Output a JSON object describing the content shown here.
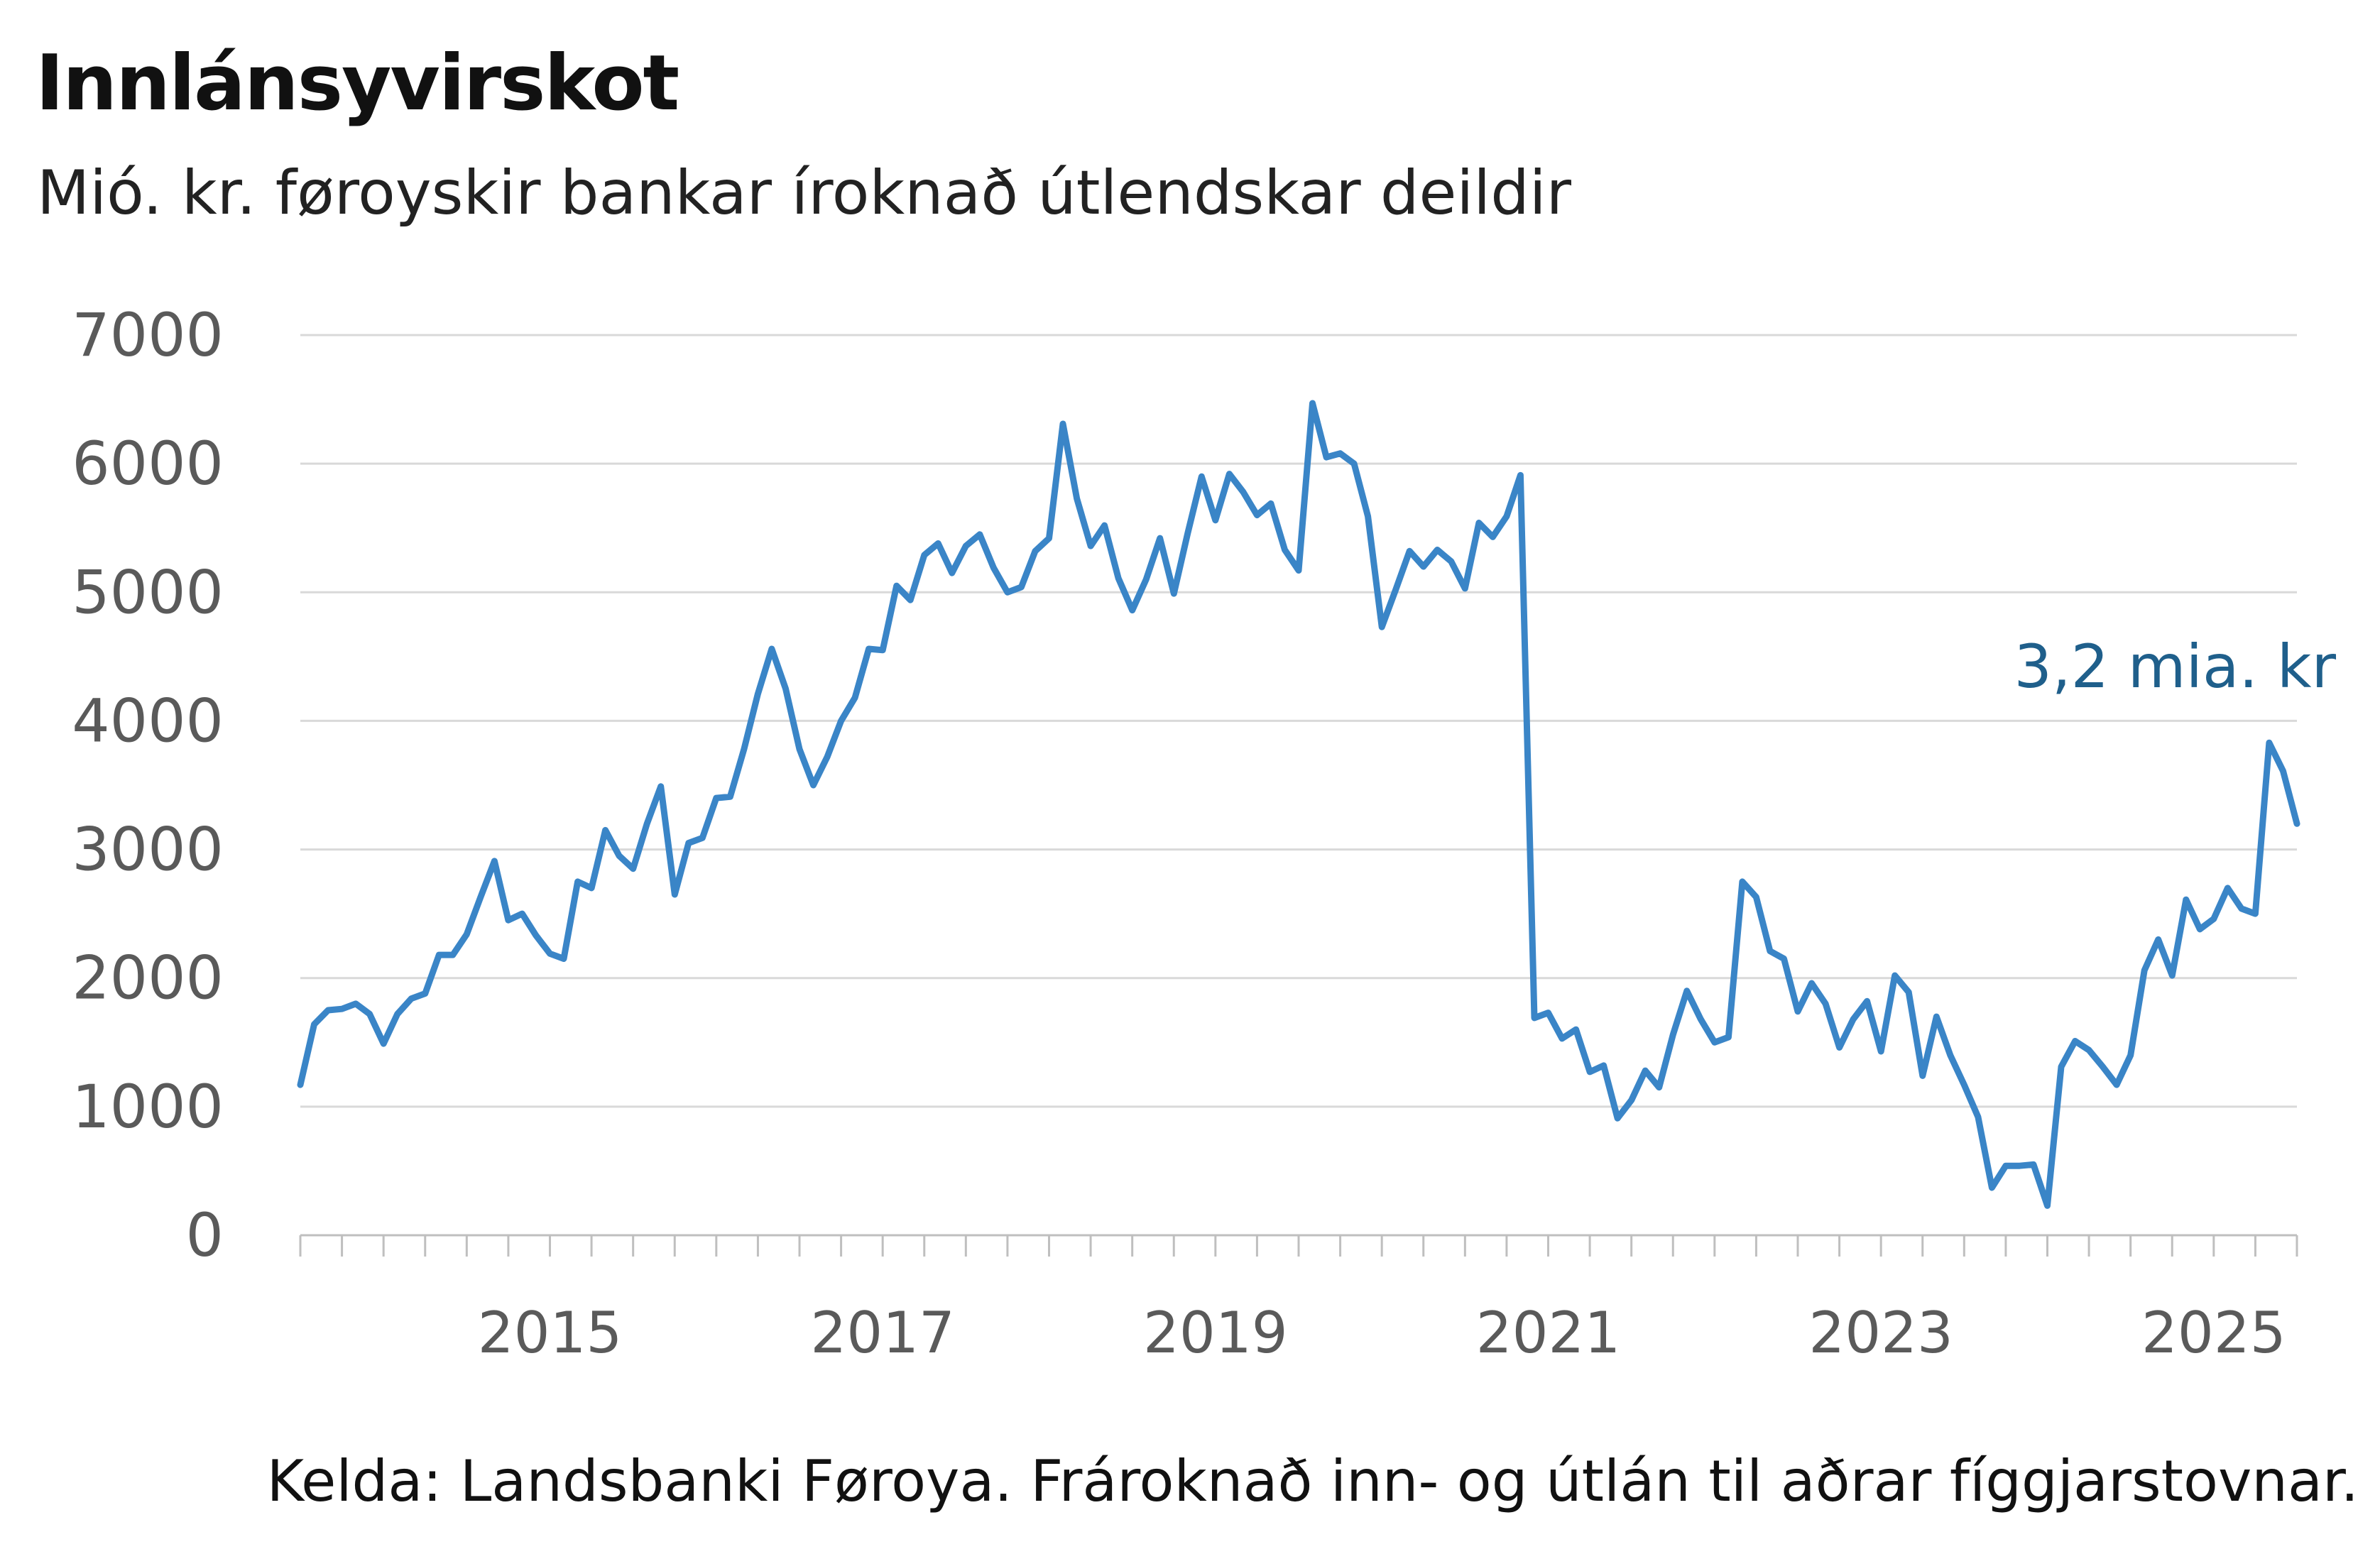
{
  "title": "Innlánsyvirskot",
  "subtitle": "Mió. kr. føroyskir bankar íroknað útlendskar deildir",
  "source": "Kelda: Landsbanki Føroya. Frároknað inn- og útlán til aðrar fíggjarstovnar.",
  "colors": {
    "line": "#3a85c7",
    "annotation": "#1f5f8b",
    "grid": "#d9d9d9",
    "axis": "#bfbfbf"
  },
  "chart_data": {
    "type": "line",
    "title": "Innlánsyvirskot",
    "subtitle": "Mió. kr. føroyskir bankar íroknað útlendskar deildir",
    "xlabel": "",
    "ylabel": "",
    "ylim": [
      0,
      7000
    ],
    "xlim": [
      "2014-01",
      "2026-01"
    ],
    "y_ticks": [
      "0",
      "1000",
      "2000",
      "3000",
      "4000",
      "5000",
      "6000",
      "7000"
    ],
    "x_ticks": [
      "2015",
      "2017",
      "2019",
      "2021",
      "2023",
      "2025"
    ],
    "grid": "horizontal",
    "annotation": {
      "text": "3,2 mia. kr",
      "x": "2026-01",
      "y": 3200
    },
    "series": [
      {
        "x": [
          "2014-01",
          "2014-02",
          "2014-03",
          "2014-04",
          "2014-05",
          "2014-06",
          "2014-07",
          "2014-08",
          "2014-09",
          "2014-10",
          "2014-11",
          "2014-12",
          "2015-01",
          "2015-02",
          "2015-03",
          "2015-04",
          "2015-05",
          "2015-06",
          "2015-07",
          "2015-08",
          "2015-09",
          "2015-10",
          "2015-11",
          "2015-12",
          "2016-01",
          "2016-02",
          "2016-03",
          "2016-04",
          "2016-05",
          "2016-06",
          "2016-07",
          "2016-08",
          "2016-09",
          "2016-10",
          "2016-11",
          "2016-12",
          "2017-01",
          "2017-02",
          "2017-03",
          "2017-04",
          "2017-05",
          "2017-06",
          "2017-07",
          "2017-08",
          "2017-09",
          "2017-10",
          "2017-11",
          "2017-12",
          "2018-01",
          "2018-02",
          "2018-03",
          "2018-04",
          "2018-05",
          "2018-06",
          "2018-07",
          "2018-08",
          "2018-09",
          "2018-10",
          "2018-11",
          "2018-12",
          "2019-01",
          "2019-02",
          "2019-03",
          "2019-04",
          "2019-05",
          "2019-06",
          "2019-07",
          "2019-08",
          "2019-09",
          "2019-10",
          "2019-11",
          "2019-12",
          "2020-01",
          "2020-02",
          "2020-03",
          "2020-04",
          "2020-05",
          "2020-06",
          "2020-07",
          "2020-08",
          "2020-09",
          "2020-10",
          "2020-11",
          "2020-12",
          "2021-01",
          "2021-02",
          "2021-03",
          "2021-04",
          "2021-05",
          "2021-06",
          "2021-07",
          "2021-08",
          "2021-09",
          "2021-10",
          "2021-11",
          "2021-12",
          "2022-01",
          "2022-02",
          "2022-03",
          "2022-04",
          "2022-05",
          "2022-06",
          "2022-07",
          "2022-08",
          "2022-09",
          "2022-10",
          "2022-11",
          "2022-12",
          "2023-01",
          "2023-02",
          "2023-03",
          "2023-04",
          "2023-05",
          "2023-06",
          "2023-07",
          "2023-08",
          "2023-09",
          "2023-10",
          "2023-11",
          "2023-12",
          "2024-01",
          "2024-02",
          "2024-03",
          "2024-04",
          "2024-05",
          "2024-06",
          "2024-07",
          "2024-08",
          "2024-09",
          "2024-10",
          "2024-11",
          "2024-12",
          "2025-01",
          "2025-02",
          "2025-03",
          "2025-04",
          "2025-05",
          "2025-06",
          "2025-07",
          "2025-08",
          "2025-09",
          "2025-10",
          "2025-11",
          "2025-12",
          "2026-01"
        ],
        "values": [
          1170,
          1640,
          1750,
          1760,
          1800,
          1720,
          1490,
          1720,
          1840,
          1880,
          2180,
          2180,
          2340,
          2630,
          2910,
          2450,
          2500,
          2330,
          2190,
          2150,
          2750,
          2700,
          3150,
          2950,
          2850,
          3200,
          3490,
          2650,
          3050,
          3090,
          3400,
          3410,
          3780,
          4210,
          4560,
          4250,
          3780,
          3500,
          3720,
          4000,
          4180,
          4560,
          4550,
          5050,
          4940,
          5290,
          5380,
          5150,
          5360,
          5450,
          5190,
          5000,
          5040,
          5320,
          5420,
          6310,
          5730,
          5360,
          5520,
          5110,
          4860,
          5100,
          5420,
          4990,
          5460,
          5900,
          5560,
          5920,
          5780,
          5600,
          5690,
          5330,
          5170,
          6470,
          6050,
          6080,
          6000,
          5590,
          4730,
          5020,
          5320,
          5200,
          5330,
          5240,
          5030,
          5540,
          5430,
          5590,
          5910,
          1690,
          1730,
          1530,
          1600,
          1270,
          1320,
          910,
          1050,
          1280,
          1150,
          1560,
          1900,
          1680,
          1500,
          1540,
          2750,
          2630,
          2210,
          2150,
          1740,
          1960,
          1800,
          1460,
          1680,
          1820,
          1430,
          2020,
          1890,
          1240,
          1700,
          1400,
          1170,
          920,
          370,
          540,
          540,
          550,
          230,
          1310,
          1510,
          1440,
          1310,
          1170,
          1400,
          2060,
          2300,
          2020,
          2610,
          2380,
          2460,
          2700,
          2540,
          2500,
          3830,
          3610,
          3200
        ]
      }
    ]
  }
}
